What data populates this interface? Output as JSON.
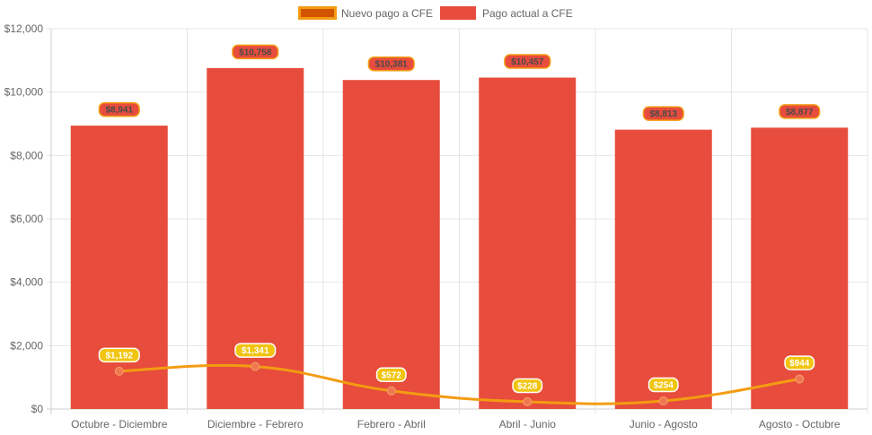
{
  "chart_data": {
    "type": "bar",
    "categories": [
      "Octubre - Diciembre",
      "Diciembre - Febrero",
      "Febrero - Abril",
      "Abril - Junio",
      "Junio - Agosto",
      "Agosto - Octubre"
    ],
    "series": [
      {
        "name": "Nuevo pago a CFE",
        "type": "line",
        "values": [
          1192,
          1341,
          572,
          228,
          254,
          944
        ],
        "labels": [
          "$1,192",
          "$1,341",
          "$572",
          "$228",
          "$254",
          "$944"
        ],
        "color": "#f39c12",
        "point_color": "#f07850",
        "label_bg": "#f1c40f"
      },
      {
        "name": "Pago actual a CFE",
        "type": "bar",
        "values": [
          8941,
          10758,
          10381,
          10457,
          8813,
          8877
        ],
        "labels": [
          "$8,941",
          "$10,758",
          "$10,381",
          "$10,457",
          "$8,813",
          "$8,877"
        ],
        "color": "#e74c3c",
        "label_bg": "#e74c3c",
        "label_border": "#f39c12"
      }
    ],
    "ylim": [
      0,
      12000
    ],
    "yticks": [
      0,
      2000,
      4000,
      6000,
      8000,
      10000,
      12000
    ],
    "ytick_labels": [
      "$0",
      "$2,000",
      "$4,000",
      "$6,000",
      "$8,000",
      "$10,000",
      "$12,000"
    ],
    "grid": true,
    "legend_position": "top",
    "legend_colors": {
      "line_fill": "#d35400",
      "line_border": "#f39c12",
      "bar_fill": "#e74c3c"
    }
  }
}
